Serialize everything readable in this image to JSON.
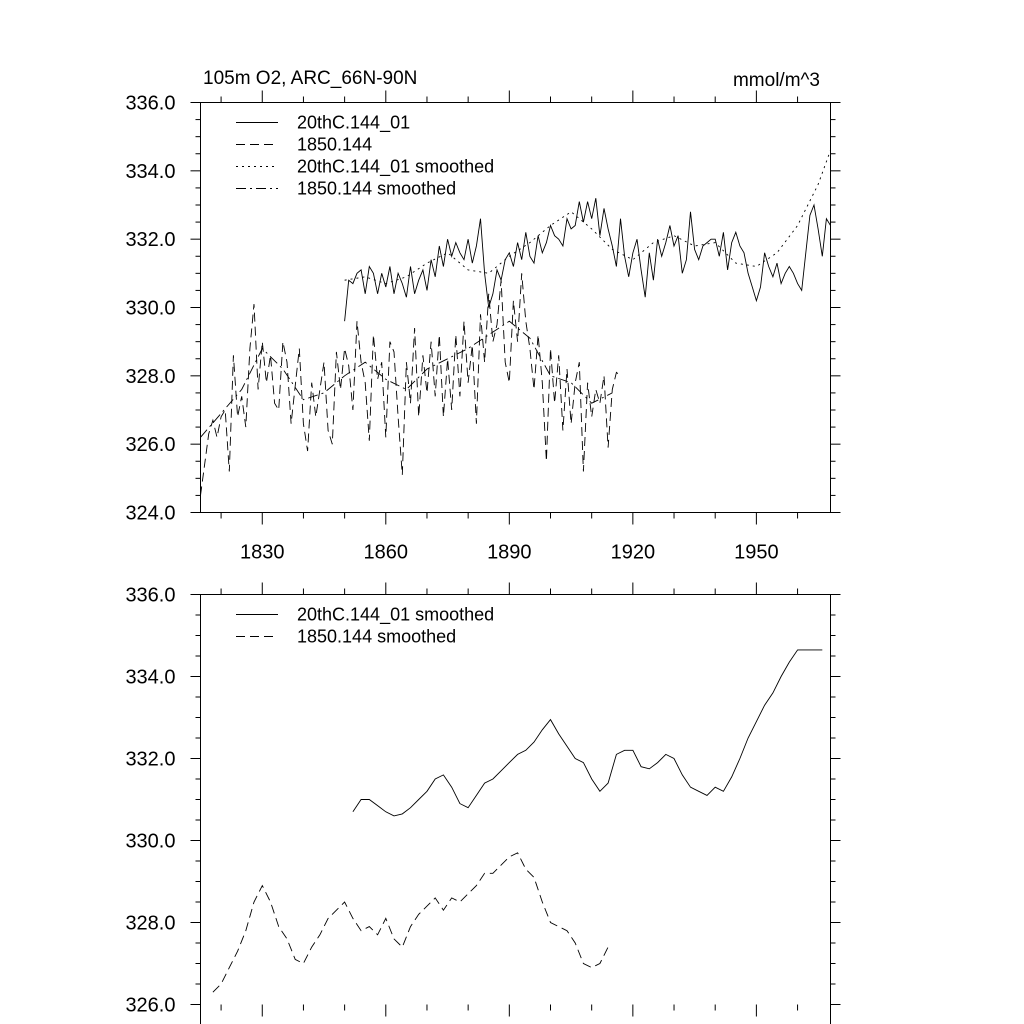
{
  "chart_data": [
    {
      "type": "line",
      "title": "105m O2, ARC_66N-90N",
      "units": "mmol/m^3",
      "xlim": [
        1815,
        1968
      ],
      "ylim": [
        324,
        336
      ],
      "x_ticks": [
        1830,
        1860,
        1890,
        1920,
        1950
      ],
      "x_tick_labels": [
        "1830",
        "1860",
        "1890",
        "1920",
        "1950"
      ],
      "y_ticks": [
        324,
        326,
        328,
        330,
        332,
        334,
        336
      ],
      "y_tick_labels": [
        "324.0",
        "326.0",
        "328.0",
        "330.0",
        "332.0",
        "334.0",
        "336.0"
      ],
      "legend_position": "top-left",
      "series": [
        {
          "name": "20thC.144_01",
          "dash": "solid",
          "x": [
            1850,
            1851,
            1852,
            1853,
            1854,
            1855,
            1856,
            1857,
            1858,
            1859,
            1860,
            1861,
            1862,
            1863,
            1864,
            1865,
            1866,
            1867,
            1868,
            1869,
            1870,
            1871,
            1872,
            1873,
            1874,
            1875,
            1876,
            1877,
            1878,
            1879,
            1880,
            1881,
            1882,
            1883,
            1884,
            1885,
            1886,
            1887,
            1888,
            1889,
            1890,
            1891,
            1892,
            1893,
            1894,
            1895,
            1896,
            1897,
            1898,
            1899,
            1900,
            1901,
            1902,
            1903,
            1904,
            1905,
            1906,
            1907,
            1908,
            1909,
            1910,
            1911,
            1912,
            1913,
            1914,
            1915,
            1916,
            1917,
            1918,
            1919,
            1920,
            1921,
            1922,
            1923,
            1924,
            1925,
            1926,
            1927,
            1928,
            1929,
            1930,
            1931,
            1932,
            1933,
            1934,
            1935,
            1936,
            1937,
            1938,
            1939,
            1940,
            1941,
            1942,
            1943,
            1944,
            1945,
            1946,
            1947,
            1948,
            1949,
            1950,
            1951,
            1952,
            1953,
            1954,
            1955,
            1956,
            1957,
            1958,
            1959,
            1960,
            1961,
            1962,
            1963,
            1964,
            1965,
            1966,
            1967,
            1968
          ],
          "values": [
            329.6,
            330.8,
            330.7,
            331.0,
            331.1,
            330.4,
            331.2,
            331.0,
            330.4,
            331.0,
            330.6,
            331.2,
            330.4,
            331.0,
            330.7,
            330.3,
            331.2,
            330.4,
            330.8,
            331.1,
            330.5,
            331.4,
            330.9,
            331.8,
            331.2,
            332.0,
            331.5,
            331.9,
            331.6,
            331.4,
            332.0,
            331.3,
            331.8,
            332.6,
            331.0,
            330.0,
            330.4,
            331.1,
            330.8,
            331.4,
            331.6,
            331.2,
            331.9,
            331.4,
            332.2,
            331.5,
            331.3,
            332.1,
            331.6,
            331.9,
            332.4,
            332.1,
            332.0,
            331.8,
            332.6,
            332.3,
            332.4,
            333.1,
            332.5,
            333.1,
            332.6,
            333.2,
            332.1,
            332.9,
            332.3,
            331.8,
            331.2,
            332.6,
            331.5,
            330.9,
            331.6,
            332.0,
            331.1,
            330.3,
            331.6,
            330.8,
            332.0,
            331.5,
            331.9,
            332.4,
            331.8,
            332.1,
            331.0,
            331.4,
            332.8,
            331.7,
            331.4,
            331.8,
            331.9,
            332.0,
            332.0,
            331.5,
            332.2,
            331.1,
            331.9,
            332.2,
            331.8,
            331.6,
            331.0,
            330.6,
            330.2,
            330.6,
            331.6,
            331.2,
            330.9,
            331.3,
            330.7,
            331.0,
            331.2,
            331.0,
            330.7,
            330.5,
            331.6,
            332.7,
            333.0,
            332.3,
            331.5,
            332.6,
            332.4
          ],
          "note": "values listed cover years 1850-1968; dense annual series"
        },
        {
          "name": "1850.144",
          "dash": "dashed",
          "x": [
            1815,
            1816,
            1817,
            1818,
            1819,
            1820,
            1821,
            1822,
            1823,
            1824,
            1825,
            1826,
            1827,
            1828,
            1829,
            1830,
            1831,
            1832,
            1833,
            1834,
            1835,
            1836,
            1837,
            1838,
            1839,
            1840,
            1841,
            1842,
            1843,
            1844,
            1845,
            1846,
            1847,
            1848,
            1849,
            1850,
            1851,
            1852,
            1853,
            1854,
            1855,
            1856,
            1857,
            1858,
            1859,
            1860,
            1861,
            1862,
            1863,
            1864,
            1865,
            1866,
            1867,
            1868,
            1869,
            1870,
            1871,
            1872,
            1873,
            1874,
            1875,
            1876,
            1877,
            1878,
            1879,
            1880,
            1881,
            1882,
            1883,
            1884,
            1885,
            1886,
            1887,
            1888,
            1889,
            1890,
            1891,
            1892,
            1893,
            1894,
            1895,
            1896,
            1897,
            1898,
            1899,
            1900,
            1901,
            1902,
            1903,
            1904,
            1905,
            1906,
            1907,
            1908,
            1909,
            1910,
            1911,
            1912,
            1913,
            1914,
            1915,
            1916,
            1917
          ],
          "values": [
            324.5,
            325.4,
            326.3,
            326.7,
            326.2,
            326.8,
            327.0,
            325.2,
            328.6,
            326.8,
            327.4,
            326.5,
            328.8,
            330.1,
            327.6,
            329.0,
            327.8,
            328.6,
            327.2,
            327.0,
            329.0,
            328.4,
            326.6,
            327.7,
            328.8,
            326.6,
            325.8,
            327.8,
            326.8,
            327.6,
            328.4,
            326.4,
            326.0,
            328.7,
            327.6,
            328.8,
            328.3,
            327.0,
            329.6,
            328.4,
            327.8,
            326.1,
            329.2,
            327.9,
            328.4,
            326.2,
            329.0,
            328.7,
            326.8,
            325.1,
            328.4,
            327.2,
            329.4,
            326.8,
            328.6,
            327.5,
            329.0,
            327.4,
            329.2,
            326.8,
            328.5,
            327.0,
            329.2,
            327.4,
            329.6,
            327.8,
            328.9,
            326.6,
            329.8,
            328.4,
            330.4,
            329.0,
            329.5,
            330.8,
            328.4,
            327.8,
            330.2,
            329.0,
            331.0,
            329.6,
            328.8,
            327.6,
            329.2,
            327.8,
            325.5,
            328.8,
            327.2,
            328.6,
            326.4,
            328.2,
            326.6,
            327.8,
            328.4,
            325.2,
            327.8,
            326.8,
            327.6,
            327.2,
            328.0,
            325.9,
            327.6,
            328.1,
            328.0
          ]
        },
        {
          "name": "20thC.144_01 smoothed",
          "dash": "dotted",
          "x": [
            1850,
            1855,
            1860,
            1865,
            1870,
            1875,
            1880,
            1885,
            1890,
            1895,
            1900,
            1905,
            1910,
            1915,
            1920,
            1925,
            1930,
            1935,
            1940,
            1945,
            1950,
            1955,
            1960,
            1965,
            1968
          ],
          "values": [
            330.8,
            330.9,
            330.7,
            330.9,
            331.3,
            331.6,
            331.1,
            331.0,
            331.5,
            331.9,
            332.4,
            332.8,
            332.3,
            331.7,
            331.4,
            331.9,
            332.1,
            331.8,
            331.9,
            331.3,
            331.2,
            331.6,
            332.4,
            333.6,
            334.6
          ]
        },
        {
          "name": "1850.144 smoothed",
          "dash": "dashdot",
          "x": [
            1815,
            1820,
            1825,
            1830,
            1835,
            1840,
            1845,
            1850,
            1855,
            1860,
            1865,
            1870,
            1875,
            1880,
            1885,
            1890,
            1895,
            1900,
            1905,
            1910,
            1915
          ],
          "values": [
            326.2,
            326.9,
            327.6,
            328.8,
            328.2,
            327.3,
            327.5,
            328.0,
            328.4,
            327.9,
            327.6,
            328.2,
            328.5,
            328.8,
            329.2,
            329.6,
            329.1,
            328.0,
            327.8,
            327.2,
            327.5
          ]
        }
      ]
    },
    {
      "type": "line",
      "xlim": [
        1815,
        1968
      ],
      "ylim": [
        326,
        336
      ],
      "y_ticks": [
        326,
        328,
        330,
        332,
        334,
        336
      ],
      "y_tick_labels": [
        "326.0",
        "328.0",
        "330.0",
        "332.0",
        "334.0",
        "336.0"
      ],
      "x_ticks": [
        1830,
        1860,
        1890,
        1920,
        1950
      ],
      "legend_position": "top-left",
      "series": [
        {
          "name": "20thC.144_01 smoothed",
          "dash": "solid",
          "x": [
            1852,
            1854,
            1856,
            1858,
            1860,
            1862,
            1864,
            1866,
            1868,
            1870,
            1872,
            1874,
            1876,
            1878,
            1880,
            1882,
            1884,
            1886,
            1888,
            1890,
            1892,
            1894,
            1896,
            1898,
            1900,
            1902,
            1904,
            1906,
            1908,
            1910,
            1912,
            1914,
            1916,
            1918,
            1920,
            1922,
            1924,
            1926,
            1928,
            1930,
            1932,
            1934,
            1936,
            1938,
            1940,
            1942,
            1944,
            1946,
            1948,
            1950,
            1952,
            1954,
            1956,
            1958,
            1960,
            1962,
            1964,
            1966
          ],
          "values": [
            330.7,
            331.0,
            331.0,
            330.85,
            330.7,
            330.6,
            330.65,
            330.8,
            331.0,
            331.2,
            331.5,
            331.6,
            331.3,
            330.9,
            330.8,
            331.1,
            331.4,
            331.5,
            331.7,
            331.9,
            332.1,
            332.2,
            332.4,
            332.7,
            332.95,
            332.6,
            332.3,
            332.0,
            331.9,
            331.5,
            331.2,
            331.4,
            332.1,
            332.2,
            332.2,
            331.8,
            331.75,
            331.9,
            332.1,
            332.0,
            331.6,
            331.3,
            331.2,
            331.1,
            331.3,
            331.2,
            331.55,
            332.0,
            332.5,
            332.9,
            333.3,
            333.6,
            334.0,
            334.35,
            334.65,
            334.65,
            334.65,
            334.65
          ],
          "note": "last points plateau omitted; series ends ~1966 at 334.65"
        },
        {
          "name": "1850.144 smoothed",
          "dash": "dashed",
          "x": [
            1818,
            1820,
            1822,
            1824,
            1826,
            1828,
            1830,
            1832,
            1834,
            1836,
            1838,
            1840,
            1842,
            1844,
            1846,
            1848,
            1850,
            1852,
            1854,
            1856,
            1858,
            1860,
            1862,
            1864,
            1866,
            1868,
            1870,
            1872,
            1874,
            1876,
            1878,
            1880,
            1882,
            1884,
            1886,
            1888,
            1890,
            1892,
            1894,
            1896,
            1898,
            1900,
            1902,
            1904,
            1906,
            1908,
            1910,
            1912,
            1914
          ],
          "values": [
            326.3,
            326.5,
            326.9,
            327.3,
            327.8,
            328.5,
            328.9,
            328.5,
            327.9,
            327.6,
            327.1,
            327.0,
            327.4,
            327.7,
            328.1,
            328.3,
            328.5,
            328.1,
            327.8,
            327.9,
            327.7,
            328.1,
            327.6,
            327.4,
            327.9,
            328.2,
            328.4,
            328.6,
            328.3,
            328.6,
            328.5,
            328.7,
            328.9,
            329.2,
            329.2,
            329.4,
            329.6,
            329.7,
            329.3,
            329.1,
            328.5,
            328.0,
            327.9,
            327.8,
            327.5,
            327.0,
            326.9,
            327.0,
            327.4
          ]
        }
      ]
    }
  ]
}
